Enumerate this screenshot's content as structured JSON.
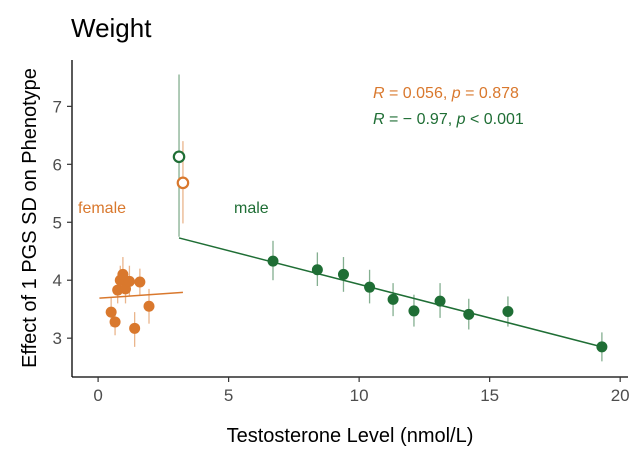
{
  "chart_data": {
    "type": "scatter",
    "title": "Weight",
    "xlabel": "Testosterone Level (nmol/L)",
    "ylabel": "Effect of 1 PGS SD on Phenotype",
    "xlim": [
      -1,
      20.3
    ],
    "ylim": [
      2.33,
      7.8
    ],
    "xticks": [
      "0",
      "5",
      "10",
      "15",
      "20"
    ],
    "yticks": [
      "3",
      "4",
      "5",
      "6",
      "7"
    ],
    "colors": {
      "female": "#D9782D",
      "male": "#1F6E35"
    },
    "group_labels": {
      "female": "female",
      "male": "male"
    },
    "stats": {
      "female": {
        "r_label": "R",
        "r_text": " = 0.056, ",
        "p_label": "p",
        "p_text": " = 0.878"
      },
      "male": {
        "r_label": "R",
        "r_text": " = − 0.97, ",
        "p_label": "p",
        "p_text": " < 0.001"
      }
    },
    "series": [
      {
        "group": "female",
        "points": [
          {
            "x": 0.5,
            "y": 3.45,
            "lo": 3.2,
            "hi": 3.7
          },
          {
            "x": 0.65,
            "y": 3.28,
            "lo": 3.05,
            "hi": 3.5
          },
          {
            "x": 0.75,
            "y": 3.83,
            "lo": 3.6,
            "hi": 4.05
          },
          {
            "x": 0.85,
            "y": 4.0,
            "lo": 3.75,
            "hi": 4.25
          },
          {
            "x": 0.95,
            "y": 4.1,
            "lo": 3.8,
            "hi": 4.4
          },
          {
            "x": 1.05,
            "y": 3.85,
            "lo": 3.6,
            "hi": 4.1
          },
          {
            "x": 1.2,
            "y": 3.98,
            "lo": 3.72,
            "hi": 4.25
          },
          {
            "x": 1.4,
            "y": 3.17,
            "lo": 2.85,
            "hi": 3.45
          },
          {
            "x": 1.6,
            "y": 3.97,
            "lo": 3.75,
            "hi": 4.2
          },
          {
            "x": 1.95,
            "y": 3.55,
            "lo": 3.25,
            "hi": 3.85
          }
        ],
        "outlier": {
          "x": 3.25,
          "y": 5.68,
          "lo": 4.98,
          "hi": 6.4
        },
        "fit": {
          "x1": 0.05,
          "y1": 3.69,
          "x2": 3.25,
          "y2": 3.79
        }
      },
      {
        "group": "male",
        "points": [
          {
            "x": 6.7,
            "y": 4.33,
            "lo": 4.0,
            "hi": 4.68
          },
          {
            "x": 8.4,
            "y": 4.18,
            "lo": 3.9,
            "hi": 4.48
          },
          {
            "x": 9.4,
            "y": 4.1,
            "lo": 3.8,
            "hi": 4.4
          },
          {
            "x": 10.4,
            "y": 3.88,
            "lo": 3.6,
            "hi": 4.18
          },
          {
            "x": 11.3,
            "y": 3.67,
            "lo": 3.38,
            "hi": 3.95
          },
          {
            "x": 12.1,
            "y": 3.47,
            "lo": 3.2,
            "hi": 3.75
          },
          {
            "x": 13.1,
            "y": 3.64,
            "lo": 3.35,
            "hi": 3.95
          },
          {
            "x": 14.2,
            "y": 3.41,
            "lo": 3.15,
            "hi": 3.68
          },
          {
            "x": 15.7,
            "y": 3.46,
            "lo": 3.2,
            "hi": 3.72
          },
          {
            "x": 19.3,
            "y": 2.85,
            "lo": 2.6,
            "hi": 3.1
          }
        ],
        "outlier": {
          "x": 3.1,
          "y": 6.13,
          "lo": 4.75,
          "hi": 7.55
        },
        "fit": {
          "x1": 3.1,
          "y1": 4.73,
          "x2": 19.3,
          "y2": 2.85
        }
      }
    ]
  }
}
